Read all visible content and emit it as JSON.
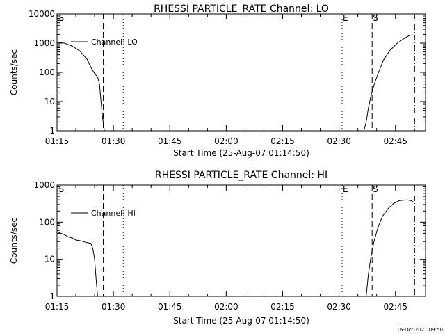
{
  "colors": {
    "background": "#ffffff",
    "ink": "#000000"
  },
  "footer": {
    "timestamp": "16-Oct-2021 09:50"
  },
  "chart_data": [
    {
      "type": "line",
      "title": "RHESSI PARTICLE_RATE Channel: LO",
      "xlabel": "Start Time (25-Aug-07 01:14:50)",
      "ylabel": "Counts/sec",
      "yscale": "log",
      "xlim": [
        0,
        98
      ],
      "ylim": [
        1,
        10000
      ],
      "xticks": [
        {
          "v": 0,
          "label": "01:15"
        },
        {
          "v": 15,
          "label": "01:30"
        },
        {
          "v": 30,
          "label": "01:45"
        },
        {
          "v": 45,
          "label": "02:00"
        },
        {
          "v": 60,
          "label": "02:15"
        },
        {
          "v": 75,
          "label": "02:30"
        },
        {
          "v": 90,
          "label": "02:45"
        }
      ],
      "yticks": [
        {
          "v": 1,
          "label": "1"
        },
        {
          "v": 10,
          "label": "10"
        },
        {
          "v": 100,
          "label": "100"
        },
        {
          "v": 1000,
          "label": "1000"
        },
        {
          "v": 10000,
          "label": "10000"
        }
      ],
      "legend": "Channel: LO",
      "markers": [
        {
          "label": "S",
          "x": 0.3,
          "style": "none"
        },
        {
          "label": "",
          "x": 12.3,
          "style": "dashed"
        },
        {
          "label": "",
          "x": 17.6,
          "style": "dotted"
        },
        {
          "label": "E",
          "x": 75.8,
          "style": "dotted"
        },
        {
          "label": "S",
          "x": 83.8,
          "style": "dashed"
        },
        {
          "label": "",
          "x": 95.1,
          "style": "dashdot"
        }
      ],
      "series": [
        {
          "name": "Channel: LO",
          "points": [
            [
              0.2,
              1050
            ],
            [
              2,
              1000
            ],
            [
              4,
              800
            ],
            [
              6,
              550
            ],
            [
              8,
              280
            ],
            [
              9,
              150
            ],
            [
              10,
              90
            ],
            [
              10.8,
              70
            ],
            [
              11.3,
              40
            ],
            [
              11.7,
              10
            ],
            [
              12.1,
              3
            ],
            [
              12.4,
              1.5
            ],
            [
              12.6,
              1
            ]
          ]
        },
        {
          "name": "Channel: LO",
          "points": [
            [
              81.6,
              1
            ],
            [
              82.2,
              2
            ],
            [
              82.8,
              6
            ],
            [
              83.6,
              18
            ],
            [
              84.4,
              40
            ],
            [
              85.5,
              100
            ],
            [
              86.8,
              260
            ],
            [
              88.5,
              560
            ],
            [
              90.5,
              1000
            ],
            [
              92.5,
              1500
            ],
            [
              93.8,
              1850
            ],
            [
              95,
              1900
            ]
          ]
        }
      ]
    },
    {
      "type": "line",
      "title": "RHESSI PARTICLE_RATE Channel: HI",
      "xlabel": "Start Time (25-Aug-07 01:14:50)",
      "ylabel": "Counts/sec",
      "yscale": "log",
      "xlim": [
        0,
        98
      ],
      "ylim": [
        1,
        1000
      ],
      "xticks": [
        {
          "v": 0,
          "label": "01:15"
        },
        {
          "v": 15,
          "label": "01:30"
        },
        {
          "v": 30,
          "label": "01:45"
        },
        {
          "v": 45,
          "label": "02:00"
        },
        {
          "v": 60,
          "label": "02:15"
        },
        {
          "v": 75,
          "label": "02:30"
        },
        {
          "v": 90,
          "label": "02:45"
        }
      ],
      "yticks": [
        {
          "v": 1,
          "label": "1"
        },
        {
          "v": 10,
          "label": "10"
        },
        {
          "v": 100,
          "label": "100"
        },
        {
          "v": 1000,
          "label": "1000"
        }
      ],
      "legend": "Channel: HI",
      "markers": [
        {
          "label": "S",
          "x": 0.3,
          "style": "none"
        },
        {
          "label": "",
          "x": 12.3,
          "style": "dashed"
        },
        {
          "label": "",
          "x": 17.6,
          "style": "dotted"
        },
        {
          "label": "E",
          "x": 75.8,
          "style": "dotted"
        },
        {
          "label": "S",
          "x": 83.8,
          "style": "dashed"
        },
        {
          "label": "",
          "x": 95.1,
          "style": "dashdot"
        }
      ],
      "series": [
        {
          "name": "Channel: HI",
          "points": [
            [
              0.2,
              55
            ],
            [
              1,
              50
            ],
            [
              2,
              46
            ],
            [
              3,
              40
            ],
            [
              4,
              38
            ],
            [
              5,
              33
            ],
            [
              6,
              32
            ],
            [
              7,
              30
            ],
            [
              8,
              28
            ],
            [
              9,
              27
            ],
            [
              9.5,
              20
            ],
            [
              10,
              10
            ],
            [
              10.4,
              3
            ],
            [
              10.8,
              1
            ]
          ]
        },
        {
          "name": "Channel: HI",
          "points": [
            [
              82.2,
              1
            ],
            [
              82.8,
              4
            ],
            [
              83.5,
              12
            ],
            [
              84.3,
              30
            ],
            [
              85.3,
              70
            ],
            [
              86.5,
              140
            ],
            [
              88,
              230
            ],
            [
              89.5,
              320
            ],
            [
              91,
              380
            ],
            [
              93,
              400
            ],
            [
              94.2,
              380
            ],
            [
              95,
              340
            ]
          ]
        }
      ]
    }
  ]
}
